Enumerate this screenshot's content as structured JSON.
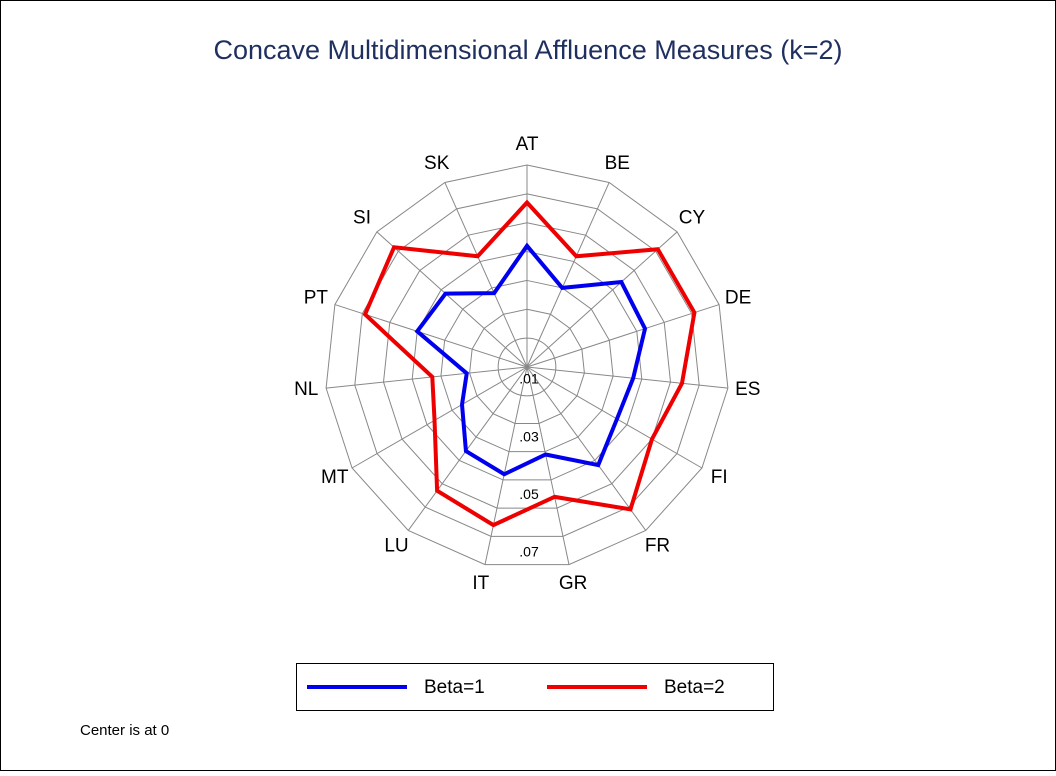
{
  "chart_data": {
    "type": "radar",
    "title": "Concave Multidimensional Affluence Measures (k=2)",
    "note": "Center is at 0",
    "categories": [
      "AT",
      "BE",
      "CY",
      "DE",
      "ES",
      "FI",
      "FR",
      "GR",
      "IT",
      "LU",
      "MT",
      "NL",
      "PT",
      "SI",
      "SK"
    ],
    "series": [
      {
        "name": "Beta=1",
        "color": "#0000ee",
        "values": [
          0.042,
          0.03,
          0.044,
          0.043,
          0.037,
          0.036,
          0.042,
          0.031,
          0.038,
          0.036,
          0.026,
          0.021,
          0.04,
          0.038,
          0.028
        ]
      },
      {
        "name": "Beta=2",
        "color": "#ee0000",
        "values": [
          0.057,
          0.042,
          0.061,
          0.061,
          0.054,
          0.05,
          0.061,
          0.046,
          0.056,
          0.053,
          0.037,
          0.033,
          0.059,
          0.062,
          0.042
        ]
      }
    ],
    "ylim": [
      0,
      0.07
    ],
    "yticks": [
      {
        "value": 0.01,
        "label": ".01"
      },
      {
        "value": 0.02,
        "label": null
      },
      {
        "value": 0.03,
        "label": ".03"
      },
      {
        "value": 0.04,
        "label": null
      },
      {
        "value": 0.05,
        "label": ".05"
      },
      {
        "value": 0.06,
        "label": null
      },
      {
        "value": 0.07,
        "label": ".07"
      }
    ],
    "grid": true,
    "legend": "bottom"
  }
}
